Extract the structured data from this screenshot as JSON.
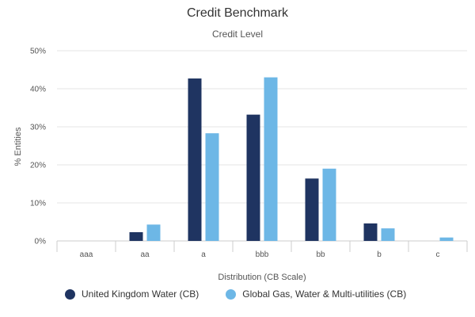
{
  "colors": {
    "series_1": "#1f3461",
    "series_2": "#6db7e6",
    "grid": "#e6e6e6",
    "axis": "#cccccc"
  },
  "chart_data": {
    "type": "bar",
    "title": "Credit Benchmark",
    "subtitle": "Credit Level",
    "xlabel": "Distribution (CB Scale)",
    "ylabel": "% Entities",
    "categories": [
      "aaa",
      "aa",
      "a",
      "bbb",
      "bb",
      "b",
      "c"
    ],
    "y_ticks": [
      "0%",
      "10%",
      "20%",
      "30%",
      "40%",
      "50%"
    ],
    "ylim": [
      0,
      50
    ],
    "grid": true,
    "legend_position": "bottom-left",
    "series": [
      {
        "name": "United Kingdom Water (CB)",
        "values": [
          0,
          2.3,
          42.7,
          33.2,
          16.4,
          4.6,
          0
        ]
      },
      {
        "name": "Global Gas, Water & Multi-utilities (CB)",
        "values": [
          0,
          4.3,
          28.3,
          43.0,
          19.0,
          3.3,
          0.9
        ]
      }
    ]
  }
}
